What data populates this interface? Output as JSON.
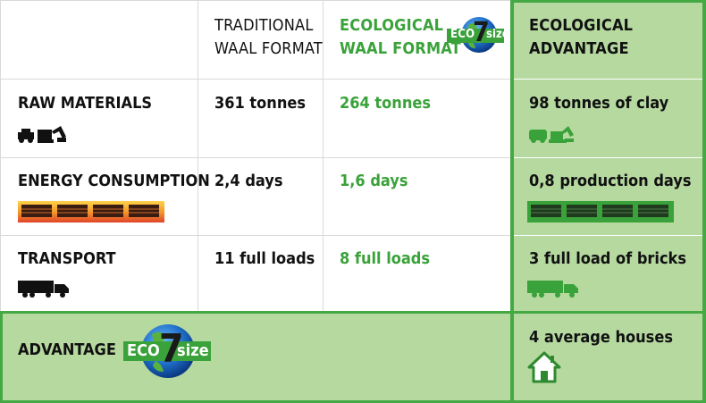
{
  "header": {
    "traditional_line1": "TRADITIONAL",
    "traditional_line2": "WAAL FORMAT",
    "ecological_line1": "ECOLOGICAL",
    "ecological_line2": "WAAL FORMAT",
    "advantage_line1": "ECOLOGICAL",
    "advantage_line2": "ADVANTAGE"
  },
  "logo": {
    "eco": "ECO",
    "seven": "7",
    "size": "size"
  },
  "rows": [
    {
      "label": "RAW MATERIALS",
      "traditional": "361 tonnes",
      "ecological": "264 tonnes",
      "advantage": "98 tonnes of clay",
      "icon": "mining-machines-icon"
    },
    {
      "label": "ENERGY CONSUMPTION",
      "traditional": "2,4 days",
      "ecological": "1,6 days",
      "advantage": "0,8 production days",
      "icon": "kiln-icon"
    },
    {
      "label": "TRANSPORT",
      "traditional": "11 full loads",
      "ecological": "8 full loads",
      "advantage": "3 full load of bricks",
      "icon": "truck-icon"
    }
  ],
  "footer": {
    "label": "ADVANTAGE",
    "advantage": "4 average houses",
    "icon": "house-icon"
  },
  "colors": {
    "accent": "#3aa23a",
    "panel": "#b6d9a0",
    "border": "#44a843"
  }
}
